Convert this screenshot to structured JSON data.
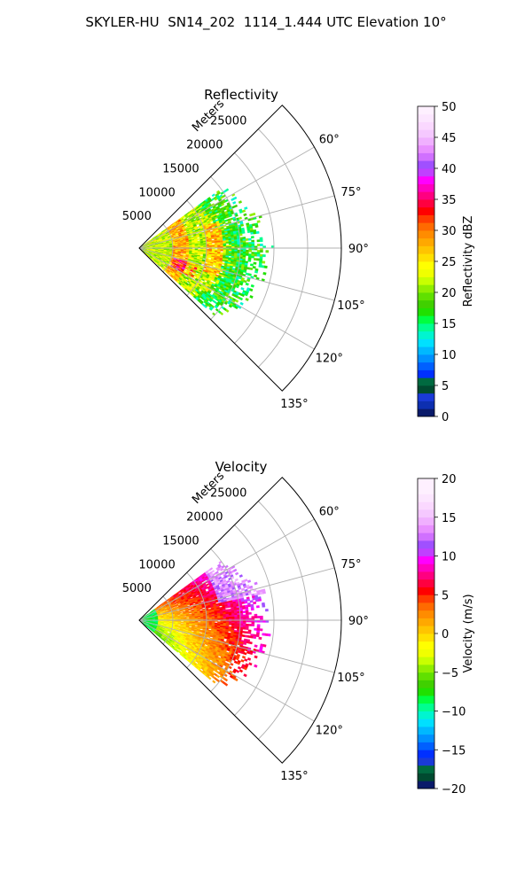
{
  "title": "SKYLER-HU  SN14_202  1114_1.444 UTC Elevation 10°",
  "chart_data": [
    {
      "type": "heatmap",
      "subtitle": "Reflectivity",
      "radial_label": "Meters",
      "r_ticks": [
        "5000",
        "10000",
        "15000",
        "20000",
        "25000"
      ],
      "r_tick_values": [
        5000,
        10000,
        15000,
        20000,
        25000
      ],
      "rlim": [
        0,
        30000
      ],
      "theta_ticks": [
        "60°",
        "75°",
        "90°",
        "105°",
        "120°",
        "135°"
      ],
      "theta_tick_values": [
        60,
        75,
        90,
        105,
        120,
        135
      ],
      "theta_range": [
        45,
        135
      ],
      "grid": true,
      "data_extent": {
        "azimuth": [
          54,
          132
        ],
        "range_m": [
          0,
          19500
        ]
      },
      "colorbar": {
        "label": "Reflectivity dBZ",
        "ticks": [
          "0",
          "5",
          "10",
          "15",
          "20",
          "25",
          "30",
          "35",
          "40",
          "45",
          "50"
        ],
        "tick_values": [
          0,
          5,
          10,
          15,
          20,
          25,
          30,
          35,
          40,
          45,
          50
        ],
        "vmin": 0,
        "vmax": 50,
        "colors": [
          "#0a1a6a",
          "#0d2fb0",
          "#1a3ad8",
          "#004a30",
          "#006a40",
          "#0030ff",
          "#0060ff",
          "#0090ff",
          "#00b8ff",
          "#00e0ff",
          "#00f5d0",
          "#00ff90",
          "#00ff40",
          "#20e000",
          "#40d000",
          "#60e000",
          "#90ee00",
          "#c8ff00",
          "#f0ff00",
          "#ffff00",
          "#ffe000",
          "#ffc400",
          "#ffa800",
          "#ff8c00",
          "#ff6a00",
          "#ff3c00",
          "#ff0000",
          "#ff0040",
          "#ff0080",
          "#ff00c0",
          "#ff00ff",
          "#c040ff",
          "#a050ff",
          "#d070ff",
          "#e890ff",
          "#f0b0ff",
          "#f5c8ff",
          "#fad8ff",
          "#fce6ff",
          "#fef0ff"
        ]
      }
    },
    {
      "type": "heatmap",
      "subtitle": "Velocity",
      "radial_label": "Meters",
      "r_ticks": [
        "5000",
        "10000",
        "15000",
        "20000",
        "25000"
      ],
      "r_tick_values": [
        5000,
        10000,
        15000,
        20000,
        25000
      ],
      "rlim": [
        0,
        30000
      ],
      "theta_ticks": [
        "60°",
        "75°",
        "90°",
        "105°",
        "120°",
        "135°"
      ],
      "theta_tick_values": [
        60,
        75,
        90,
        105,
        120,
        135
      ],
      "theta_range": [
        45,
        135
      ],
      "grid": true,
      "data_extent": {
        "azimuth": [
          54,
          130
        ],
        "range_m": [
          0,
          19500
        ]
      },
      "colorbar": {
        "label": "Velocity (m/s)",
        "ticks": [
          "−20",
          "−15",
          "−10",
          "−5",
          "0",
          "5",
          "10",
          "15",
          "20"
        ],
        "tick_values": [
          -20,
          -15,
          -10,
          -5,
          0,
          5,
          10,
          15,
          20
        ],
        "vmin": -20,
        "vmax": 20,
        "colors": [
          "#0a1a6a",
          "#004a30",
          "#006a40",
          "#1a3ad8",
          "#0030ff",
          "#0060ff",
          "#0090ff",
          "#00b8ff",
          "#00e0ff",
          "#00f5d0",
          "#00ff90",
          "#00ff40",
          "#20e000",
          "#40d000",
          "#60e000",
          "#90ee00",
          "#c8ff00",
          "#f0ff00",
          "#ffff00",
          "#ffe000",
          "#ffc400",
          "#ffa800",
          "#ff8c00",
          "#ff6a00",
          "#ff3c00",
          "#ff0000",
          "#ff0040",
          "#ff0080",
          "#ff00c0",
          "#ff00ff",
          "#c040ff",
          "#a050ff",
          "#d070ff",
          "#e890ff",
          "#f0b0ff",
          "#f5c8ff",
          "#fad8ff",
          "#fce6ff",
          "#fef0ff",
          "#fef0ff"
        ]
      }
    }
  ]
}
